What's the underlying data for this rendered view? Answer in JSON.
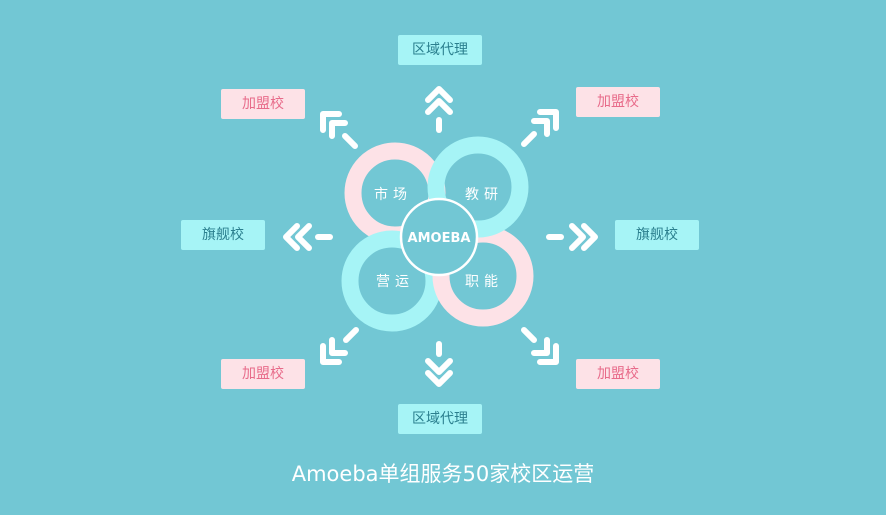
{
  "center": {
    "label": "AMOEBA"
  },
  "rings": {
    "top_left": "市场",
    "top_right": "教研",
    "bottom_left": "营运",
    "bottom_right": "职能"
  },
  "nodes": {
    "top": "区域代理",
    "bottom": "区域代理",
    "left": "旗舰校",
    "right": "旗舰校",
    "top_left": "加盟校",
    "top_right": "加盟校",
    "bottom_left": "加盟校",
    "bottom_right": "加盟校"
  },
  "caption": "Amoeba单组服务50家校区运营",
  "colors": {
    "background": "#72c7d4",
    "ring_pink": "#fde2e7",
    "ring_cyan": "#a6f4f6",
    "arrow": "#ffffff"
  }
}
